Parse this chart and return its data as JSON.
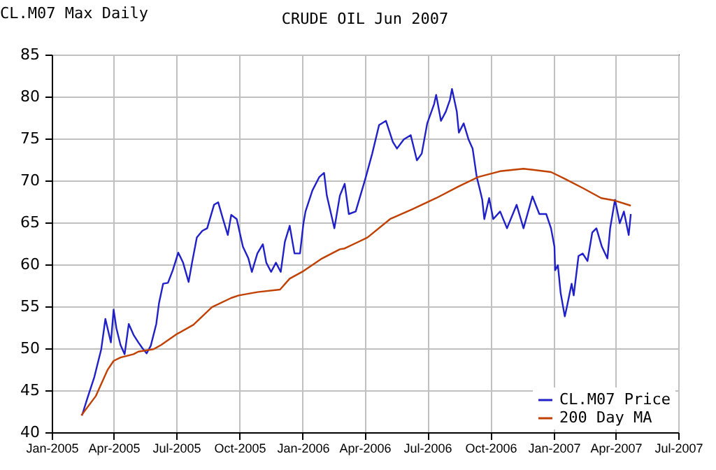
{
  "chart_data": {
    "type": "line",
    "title": "CRUDE OIL Jun 2007",
    "subtitle": "CL.M07 Max Daily",
    "xlim": [
      "2005-01-01",
      "2007-07-01"
    ],
    "xticks": [
      {
        "value": "2005-01-01",
        "label": "Jan-2005"
      },
      {
        "value": "2005-04-01",
        "label": "Apr-2005"
      },
      {
        "value": "2005-07-01",
        "label": "Jul-2005"
      },
      {
        "value": "2005-10-01",
        "label": "Oct-2005"
      },
      {
        "value": "2006-01-01",
        "label": "Jan-2006"
      },
      {
        "value": "2006-04-01",
        "label": "Apr-2006"
      },
      {
        "value": "2006-07-01",
        "label": "Jul-2006"
      },
      {
        "value": "2006-10-01",
        "label": "Oct-2006"
      },
      {
        "value": "2007-01-01",
        "label": "Jan-2007"
      },
      {
        "value": "2007-04-01",
        "label": "Apr-2007"
      },
      {
        "value": "2007-07-01",
        "label": "Jul-2007"
      }
    ],
    "ylim": [
      40,
      85
    ],
    "yticks": [
      40,
      45,
      50,
      55,
      60,
      65,
      70,
      75,
      80,
      85
    ],
    "grid": true,
    "legend": "bottom right",
    "series": [
      {
        "name": "CL.M07 Price",
        "color": "#2020c8",
        "x": [
          "2005-02-14",
          "2005-02-22",
          "2005-03-04",
          "2005-03-14",
          "2005-03-20",
          "2005-03-28",
          "2005-04-01",
          "2005-04-05",
          "2005-04-11",
          "2005-04-17",
          "2005-04-23",
          "2005-04-30",
          "2005-05-07",
          "2005-05-13",
          "2005-05-19",
          "2005-05-25",
          "2005-06-02",
          "2005-06-06",
          "2005-06-12",
          "2005-06-19",
          "2005-06-26",
          "2005-07-04",
          "2005-07-11",
          "2005-07-19",
          "2005-07-24",
          "2005-07-31",
          "2005-08-08",
          "2005-08-15",
          "2005-08-25",
          "2005-08-31",
          "2005-09-07",
          "2005-09-14",
          "2005-09-19",
          "2005-09-27",
          "2005-09-30",
          "2005-10-06",
          "2005-10-14",
          "2005-10-19",
          "2005-10-27",
          "2005-11-04",
          "2005-11-09",
          "2005-11-16",
          "2005-11-23",
          "2005-11-30",
          "2005-12-06",
          "2005-12-13",
          "2005-12-20",
          "2005-12-28",
          "2006-01-02",
          "2006-01-05",
          "2006-01-15",
          "2006-01-25",
          "2006-02-01",
          "2006-02-05",
          "2006-02-16",
          "2006-02-24",
          "2006-03-03",
          "2006-03-09",
          "2006-03-19",
          "2006-04-02",
          "2006-04-12",
          "2006-04-22",
          "2006-05-02",
          "2006-05-12",
          "2006-05-18",
          "2006-05-28",
          "2006-06-07",
          "2006-06-16",
          "2006-06-23",
          "2006-07-01",
          "2006-07-11",
          "2006-07-14",
          "2006-07-21",
          "2006-07-28",
          "2006-08-03",
          "2006-08-06",
          "2006-08-13",
          "2006-08-16",
          "2006-08-23",
          "2006-08-30",
          "2006-09-05",
          "2006-09-11",
          "2006-09-15",
          "2006-09-19",
          "2006-09-22",
          "2006-09-29",
          "2006-10-05",
          "2006-10-15",
          "2006-10-25",
          "2006-11-08",
          "2006-11-18",
          "2006-12-01",
          "2006-12-11",
          "2006-12-21",
          "2006-12-28",
          "2007-01-02",
          "2007-01-03",
          "2007-01-07",
          "2007-01-11",
          "2007-01-17",
          "2007-01-20",
          "2007-01-27",
          "2007-01-30",
          "2007-02-06",
          "2007-02-12",
          "2007-02-19",
          "2007-02-26",
          "2007-03-04",
          "2007-03-12",
          "2007-03-20",
          "2007-03-24",
          "2007-03-31",
          "2007-04-07",
          "2007-04-13",
          "2007-04-20",
          "2007-04-23"
        ],
        "values": [
          42.0,
          44.1,
          46.6,
          49.9,
          53.5,
          50.7,
          54.6,
          52.4,
          50.4,
          49.3,
          52.9,
          51.6,
          50.7,
          50.0,
          49.4,
          50.3,
          52.9,
          55.4,
          57.7,
          57.8,
          59.3,
          61.4,
          60.2,
          57.9,
          60.2,
          63.2,
          64.0,
          64.3,
          67.1,
          67.4,
          65.4,
          63.5,
          65.9,
          65.4,
          64.3,
          62.1,
          60.7,
          59.1,
          61.3,
          62.4,
          60.2,
          59.1,
          60.2,
          59.1,
          62.7,
          64.6,
          61.3,
          61.3,
          64.9,
          66.3,
          68.8,
          70.4,
          70.9,
          68.2,
          64.3,
          68.2,
          69.6,
          66.0,
          66.3,
          70.2,
          73.2,
          76.6,
          77.1,
          74.6,
          73.8,
          74.9,
          75.4,
          72.4,
          73.2,
          76.8,
          79.1,
          80.2,
          77.1,
          78.2,
          79.6,
          80.9,
          78.2,
          75.7,
          76.8,
          74.9,
          73.8,
          70.4,
          69.1,
          67.7,
          65.4,
          67.9,
          65.4,
          66.3,
          64.3,
          67.1,
          64.3,
          68.1,
          66.0,
          66.0,
          64.3,
          62.1,
          59.3,
          59.9,
          56.6,
          53.8,
          54.9,
          57.7,
          56.3,
          61.0,
          61.3,
          60.4,
          63.8,
          64.3,
          62.1,
          60.7,
          64.3,
          67.7,
          64.9,
          66.3,
          63.5,
          66.0
        ]
      },
      {
        "name": "200 Day MA",
        "color": "#c04000",
        "x": [
          "2005-02-13",
          "2005-03-06",
          "2005-03-23",
          "2005-04-01",
          "2005-04-11",
          "2005-04-30",
          "2005-05-07",
          "2005-05-29",
          "2005-06-09",
          "2005-07-02",
          "2005-07-26",
          "2005-08-22",
          "2005-09-19",
          "2005-09-30",
          "2005-10-27",
          "2005-11-29",
          "2005-12-13",
          "2006-01-02",
          "2006-01-29",
          "2006-02-24",
          "2006-03-03",
          "2006-04-05",
          "2006-05-08",
          "2006-06-10",
          "2006-07-14",
          "2006-08-16",
          "2006-09-13",
          "2006-10-15",
          "2006-11-18",
          "2006-12-28",
          "2007-01-17",
          "2007-02-12",
          "2007-03-11",
          "2007-03-31",
          "2007-04-23"
        ],
        "values": [
          42.0,
          44.3,
          47.4,
          48.5,
          48.9,
          49.3,
          49.6,
          49.9,
          50.4,
          51.7,
          52.8,
          54.9,
          56.0,
          56.3,
          56.7,
          57.0,
          58.3,
          59.2,
          60.7,
          61.8,
          61.9,
          63.2,
          65.4,
          66.6,
          67.9,
          69.3,
          70.4,
          71.1,
          71.4,
          71.0,
          70.2,
          69.1,
          67.9,
          67.6,
          67.0
        ]
      }
    ]
  }
}
